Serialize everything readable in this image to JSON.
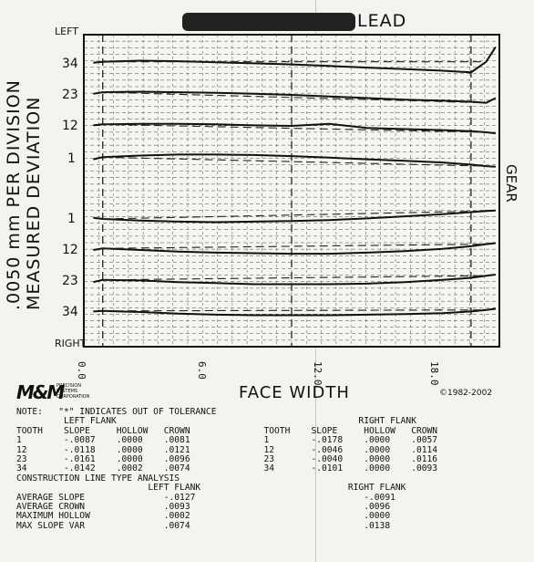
{
  "header": {
    "title": "LEAD",
    "left_label": "LEFT",
    "right_label": "RIGHT"
  },
  "ylabel": "MEASURED DEVIATION",
  "ylabel_scale": ".0050 mm PER DIVISION",
  "right_side_label": "GEAR",
  "tooth_labels": [
    "34",
    "23",
    "12",
    "1",
    "1",
    "12",
    "23",
    "34"
  ],
  "xtick_labels": [
    "0.0",
    "6.0",
    "12.0",
    "18.0"
  ],
  "xlabel": "FACE WIDTH",
  "logo": {
    "mark": "M&M",
    "company": "PRECISION\nSYSTEMS\nCORPORATION"
  },
  "copyright": "©1982-2002",
  "note": "NOTE:   \"*\" INDICATES OUT OF TOLERANCE",
  "flank_table": {
    "left_title": "LEFT FLANK",
    "right_title": "RIGHT FLANK",
    "columns": [
      "TOOTH",
      "SLOPE",
      "HOLLOW",
      "CROWN"
    ],
    "left_rows": [
      [
        "1",
        "-.0087",
        ".0000",
        ".0081"
      ],
      [
        "12",
        "-.0118",
        ".0000",
        ".0121"
      ],
      [
        "23",
        "-.0161",
        ".0000",
        ".0096"
      ],
      [
        "34",
        "-.0142",
        ".0002",
        ".0074"
      ]
    ],
    "right_rows": [
      [
        "1",
        "-.0178",
        ".0000",
        ".0057"
      ],
      [
        "12",
        "-.0046",
        ".0000",
        ".0114"
      ],
      [
        "23",
        "-.0040",
        ".0000",
        ".0116"
      ],
      [
        "34",
        "-.0101",
        ".0000",
        ".0093"
      ]
    ]
  },
  "construction": {
    "title": "CONSTRUCTION LINE TYPE ANALYSIS",
    "left_title": "LEFT FLANK",
    "right_title": "RIGHT FLANK",
    "rows": [
      [
        "AVERAGE SLOPE",
        "-.0127",
        "-.0091"
      ],
      [
        "AVERAGE CROWN",
        ".0093",
        ".0096"
      ],
      [
        "MAXIMUM HOLLOW",
        ".0002",
        ".0000"
      ],
      [
        "MAX SLOPE VAR",
        ".0074",
        ".0138"
      ]
    ]
  },
  "chart_data": {
    "type": "line",
    "title": "LEAD",
    "xlabel": "FACE WIDTH",
    "ylabel": ".0050 mm PER DIVISION  MEASURED DEVIATION",
    "xlim": [
      -1.0,
      21.0
    ],
    "x_ticks": [
      0,
      6,
      12,
      18
    ],
    "grid": true,
    "trace_x": [
      -0.5,
      0,
      2,
      4,
      6,
      8,
      10,
      12,
      14,
      16,
      18,
      19.5,
      20.3,
      20.8
    ],
    "series": [
      {
        "name": "34",
        "flank": "left",
        "y": [
          0.2,
          0.4,
          0.6,
          0.5,
          0.3,
          0.1,
          -0.1,
          -0.4,
          -0.7,
          -1.0,
          -1.3,
          -1.6,
          0.4,
          3.2
        ]
      },
      {
        "name": "23",
        "flank": "left",
        "y": [
          0.2,
          0.5,
          0.6,
          0.5,
          0.4,
          0.2,
          0.0,
          -0.3,
          -0.6,
          -0.9,
          -1.1,
          -1.3,
          -1.5,
          -0.6
        ]
      },
      {
        "name": "12",
        "flank": "left",
        "y": [
          0.1,
          0.3,
          0.4,
          0.4,
          0.3,
          0.1,
          0.0,
          0.4,
          -0.4,
          -0.6,
          -0.8,
          -1.0,
          -1.2,
          -1.4
        ]
      },
      {
        "name": "1",
        "flank": "left",
        "y": [
          -0.1,
          0.3,
          0.6,
          0.8,
          0.8,
          0.7,
          0.5,
          0.2,
          -0.1,
          -0.4,
          -0.7,
          -1.1,
          -1.4,
          -1.5
        ]
      },
      {
        "name": "1",
        "flank": "right",
        "y": [
          0.2,
          0.0,
          -0.3,
          -0.5,
          -0.6,
          -0.5,
          -0.4,
          -0.2,
          0.1,
          0.5,
          0.9,
          1.3,
          1.5,
          1.6
        ]
      },
      {
        "name": "12",
        "flank": "right",
        "y": [
          0.0,
          0.3,
          0.0,
          -0.3,
          -0.5,
          -0.6,
          -0.7,
          -0.7,
          -0.5,
          -0.2,
          0.2,
          0.7,
          1.1,
          1.3
        ]
      },
      {
        "name": "23",
        "flank": "right",
        "y": [
          -0.2,
          0.2,
          0.1,
          -0.2,
          -0.4,
          -0.6,
          -0.6,
          -0.6,
          -0.5,
          -0.2,
          0.2,
          0.6,
          1.0,
          1.2
        ]
      },
      {
        "name": "34",
        "flank": "right",
        "y": [
          0.1,
          0.2,
          0.0,
          -0.3,
          -0.5,
          -0.6,
          -0.6,
          -0.6,
          -0.5,
          -0.4,
          -0.2,
          0.1,
          0.4,
          0.6
        ]
      }
    ]
  }
}
